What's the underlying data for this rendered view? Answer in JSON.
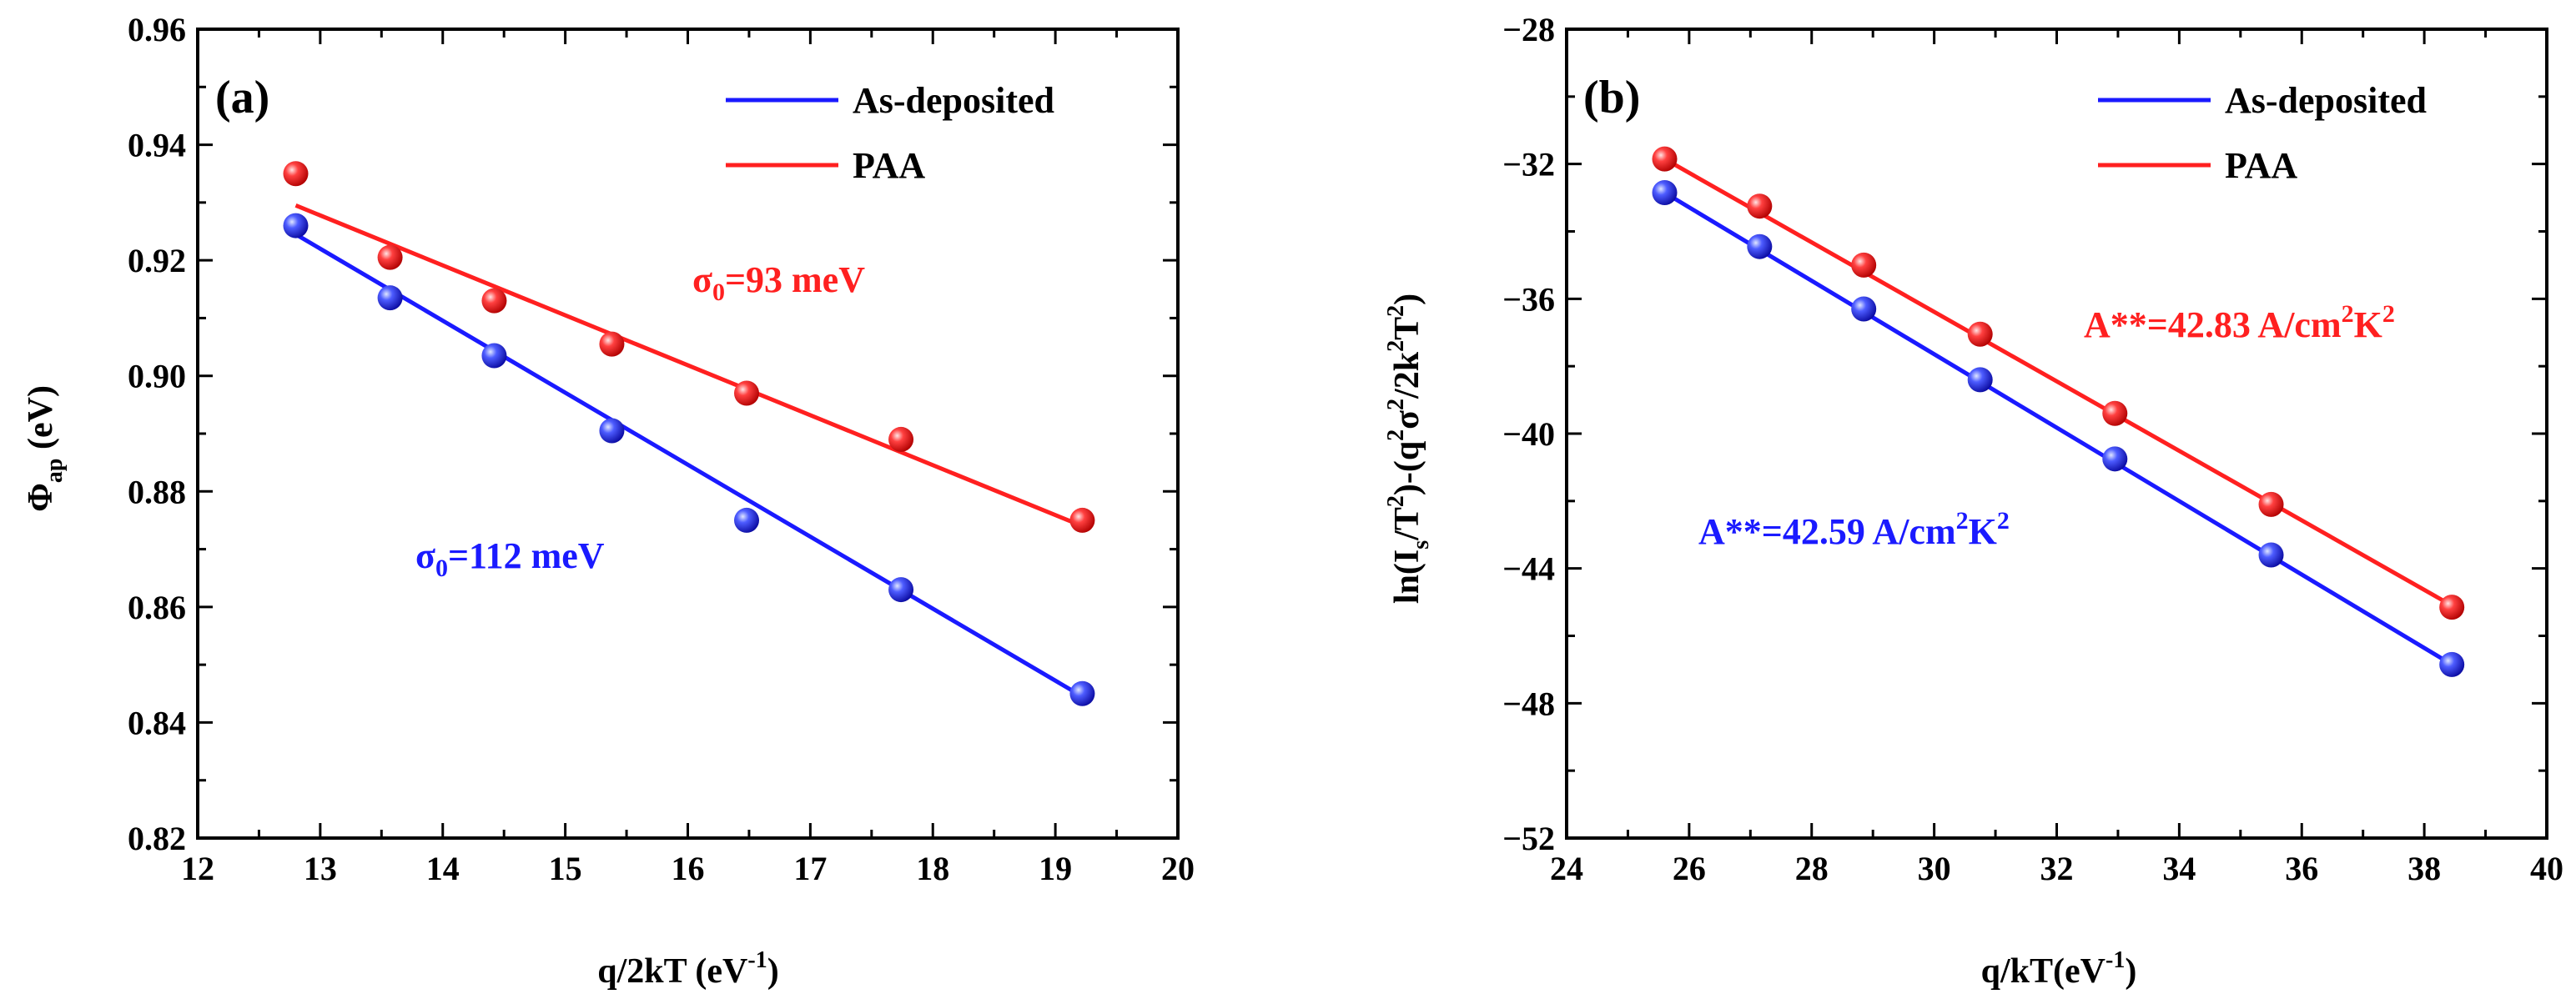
{
  "colors": {
    "blue": "#1a1aff",
    "red": "#ff2020",
    "axis": "#000000"
  },
  "chart_data": [
    {
      "type": "line",
      "panel_label": "(a)",
      "xlabel_text": "q/2kT (eV",
      "xlabel_sup": "-1",
      "xlabel_close": ")",
      "ylabel_symbol": "Φ",
      "ylabel_sub": "ap",
      "ylabel_rest": " (eV)",
      "xlim": [
        12,
        20
      ],
      "ylim": [
        0.82,
        0.96
      ],
      "xticks": [
        12,
        13,
        14,
        15,
        16,
        17,
        18,
        19,
        20
      ],
      "yticks": [
        0.82,
        0.84,
        0.86,
        0.88,
        0.9,
        0.92,
        0.94,
        0.96
      ],
      "ydecimals": 2,
      "legend_position": "top-right",
      "series": [
        {
          "name": "As-deposited",
          "color": "#1a1aff",
          "x": [
            12.8,
            13.57,
            14.42,
            15.38,
            16.48,
            17.74,
            19.22
          ],
          "y": [
            0.926,
            0.9135,
            0.9035,
            0.8905,
            0.875,
            0.863,
            0.845
          ],
          "fit": {
            "x": [
              12.8,
              19.22
            ],
            "y": [
              0.9245,
              0.8445
            ]
          }
        },
        {
          "name": "PAA",
          "color": "#ff2020",
          "x": [
            12.8,
            13.57,
            14.42,
            15.38,
            16.48,
            17.74,
            19.22
          ],
          "y": [
            0.935,
            0.9205,
            0.913,
            0.9055,
            0.897,
            0.889,
            0.875
          ],
          "fit": {
            "x": [
              12.8,
              19.22
            ],
            "y": [
              0.9295,
              0.874
            ]
          }
        }
      ],
      "annotations": [
        {
          "base": "σ",
          "sub": "0",
          "tail": "=93 meV",
          "color": "#ff2020"
        },
        {
          "base": "σ",
          "sub": "0",
          "tail": "=112 meV",
          "color": "#1a1aff"
        }
      ]
    },
    {
      "type": "line",
      "panel_label": "(b)",
      "xlabel_text": "q/kT(eV",
      "xlabel_sup": "-1",
      "xlabel_close": ")",
      "ylabel_parts": [
        "ln(I",
        "s",
        "/T",
        "2",
        ")-(q",
        "2",
        "σ",
        "2",
        "/2k",
        "2",
        "T",
        "2",
        ")"
      ],
      "xlim": [
        24,
        40
      ],
      "ylim": [
        -52,
        -28
      ],
      "xticks": [
        24,
        26,
        28,
        30,
        32,
        34,
        36,
        38,
        40
      ],
      "yticks": [
        -52,
        -48,
        -44,
        -40,
        -36,
        -32,
        -28
      ],
      "ydecimals": 0,
      "legend_position": "top-right",
      "series": [
        {
          "name": "As-deposited",
          "color": "#1a1aff",
          "x": [
            25.6,
            27.15,
            28.85,
            30.75,
            32.95,
            35.5,
            38.45
          ],
          "y": [
            -32.85,
            -34.45,
            -36.3,
            -38.4,
            -40.75,
            -43.6,
            -46.85
          ],
          "fit": {
            "x": [
              25.6,
              38.45
            ],
            "y": [
              -32.85,
              -46.85
            ]
          }
        },
        {
          "name": "PAA",
          "color": "#ff2020",
          "x": [
            25.6,
            27.15,
            28.85,
            30.75,
            32.95,
            35.5,
            38.45
          ],
          "y": [
            -31.85,
            -33.25,
            -35.0,
            -37.05,
            -39.4,
            -42.1,
            -45.15
          ],
          "fit": {
            "x": [
              25.6,
              38.45
            ],
            "y": [
              -31.85,
              -45.1
            ]
          }
        }
      ],
      "annotations": [
        {
          "text": "A**=42.83 A/cm",
          "sup1": "2",
          "mid": "K",
          "sup2": "2",
          "color": "#ff2020"
        },
        {
          "text": "A**=42.59 A/cm",
          "sup1": "2",
          "mid": "K",
          "sup2": "2",
          "color": "#1a1aff"
        }
      ]
    }
  ]
}
